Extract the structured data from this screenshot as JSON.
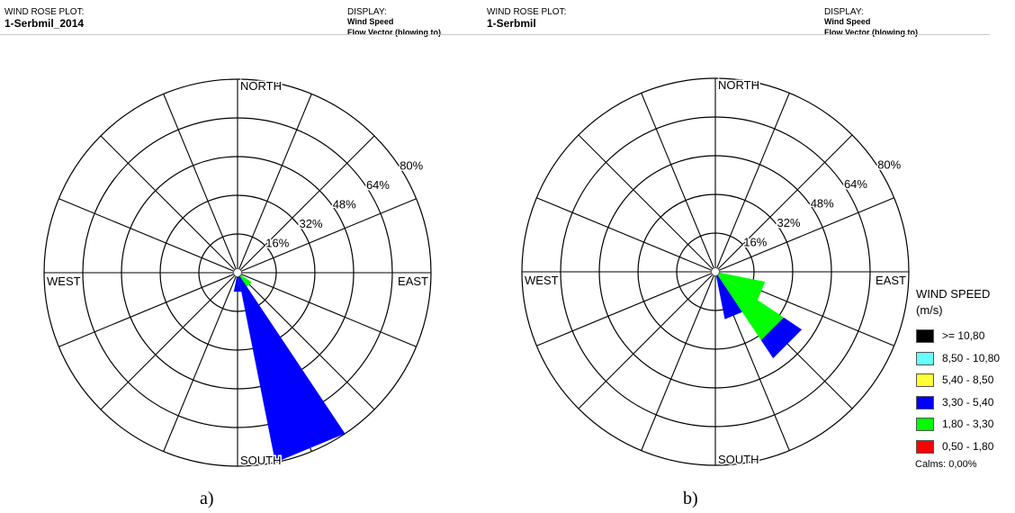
{
  "headers": [
    {
      "plot_label": "WIND ROSE PLOT:",
      "plot_name": "1-Serbmil_2014",
      "display_label": "DISPLAY:",
      "display_value": "Wind Speed",
      "display_sub": "Flow Vector (blowing to)"
    },
    {
      "plot_label": "WIND ROSE PLOT:",
      "plot_name": "1-Serbmil",
      "display_label": "DISPLAY:",
      "display_value": "Wind Speed",
      "display_sub": "Flow Vector (blowing to)"
    }
  ],
  "captions": [
    "a)",
    "b)"
  ],
  "legend": {
    "title": "WIND SPEED",
    "unit": "(m/s)",
    "items": [
      {
        "label": ">= 10,80",
        "color": "#000000"
      },
      {
        "label": "8,50 - 10,80",
        "color": "#66ffff"
      },
      {
        "label": "5,40 - 8,50",
        "color": "#ffff33"
      },
      {
        "label": "3,30 - 5,40",
        "color": "#0000ff"
      },
      {
        "label": "1,80 - 3,30",
        "color": "#00ff00"
      },
      {
        "label": "0,50 - 1,80",
        "color": "#ff0000"
      }
    ],
    "calms": "Calms: 0,00%"
  },
  "chart_data": [
    {
      "type": "wind_rose",
      "compass_labels": {
        "north": "NORTH",
        "south": "SOUTH",
        "east": "EAST",
        "west": "WEST"
      },
      "radial_ticks": [
        "16%",
        "32%",
        "48%",
        "64%",
        "80%"
      ],
      "rmax": 80,
      "sectors": 16,
      "bins": [
        {
          "direction_deg": 157.5,
          "segments": [
            {
              "range": "3,30 - 5,40",
              "from": 0,
              "to": 80
            }
          ]
        },
        {
          "direction_deg": 135,
          "segments": [
            {
              "range": "1,80 - 3,30",
              "from": 0,
              "to": 7
            }
          ]
        },
        {
          "direction_deg": 180,
          "segments": [
            {
              "range": "3,30 - 5,40",
              "from": 0,
              "to": 8
            }
          ]
        }
      ]
    },
    {
      "type": "wind_rose",
      "compass_labels": {
        "north": "NORTH",
        "south": "SOUTH",
        "east": "EAST",
        "west": "WEST"
      },
      "radial_ticks": [
        "16%",
        "32%",
        "48%",
        "64%",
        "80%"
      ],
      "rmax": 80,
      "sectors": 16,
      "bins": [
        {
          "direction_deg": 135,
          "segments": [
            {
              "range": "1,80 - 3,30",
              "from": 0,
              "to": 34
            },
            {
              "range": "3,30 - 5,40",
              "from": 34,
              "to": 43
            }
          ]
        },
        {
          "direction_deg": 112.5,
          "segments": [
            {
              "range": "1,80 - 3,30",
              "from": 0,
              "to": 21
            }
          ]
        },
        {
          "direction_deg": 157.5,
          "segments": [
            {
              "range": "3,30 - 5,40",
              "from": 0,
              "to": 20
            }
          ]
        }
      ]
    }
  ]
}
